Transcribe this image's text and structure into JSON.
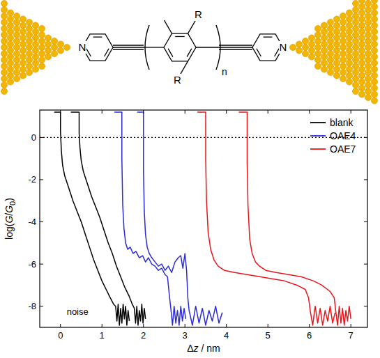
{
  "structure": {
    "atoms": [
      "N",
      "N"
    ],
    "substituents": [
      "R",
      "R"
    ],
    "repeat": "n"
  },
  "chart_data": {
    "type": "line",
    "x_label": "Δz / nm",
    "y_label": "log(G/G0)",
    "xlim": [
      -0.5,
      7.4
    ],
    "ylim": [
      -9,
      1.3
    ],
    "xticks": [
      0,
      1,
      2,
      3,
      4,
      5,
      6,
      7
    ],
    "yticks": [
      -8,
      -6,
      -4,
      -2,
      0
    ],
    "legend": "upper right",
    "annotations": [
      {
        "text": "noise",
        "x": 0.15,
        "y": -8.4
      }
    ],
    "series": [
      {
        "name": "blank",
        "color": "#000000",
        "traces": [
          {
            "x": [
              -0.15,
              0.0,
              0.0,
              0.02,
              0.05,
              0.1,
              0.2,
              0.3,
              0.4,
              0.5,
              0.6,
              0.7,
              0.8,
              0.9,
              1.0,
              1.1,
              1.2,
              1.28,
              1.33,
              1.36,
              1.39,
              1.42,
              1.45,
              1.48,
              1.51,
              1.54,
              1.57,
              1.6,
              1.63,
              1.66
            ],
            "values": [
              1.2,
              1.2,
              0.3,
              -0.6,
              -1.3,
              -1.8,
              -2.4,
              -3.0,
              -3.5,
              -4.0,
              -4.6,
              -5.2,
              -5.8,
              -6.3,
              -6.8,
              -7.2,
              -7.6,
              -7.9,
              -8.0,
              -8.7,
              -7.9,
              -8.9,
              -8.1,
              -8.8,
              -7.9,
              -8.6,
              -8.0,
              -8.9,
              -8.2,
              -8.7
            ]
          },
          {
            "x": [
              0.25,
              0.45,
              0.45,
              0.47,
              0.5,
              0.55,
              0.65,
              0.75,
              0.85,
              0.95,
              1.05,
              1.15,
              1.25,
              1.35,
              1.45,
              1.55,
              1.65,
              1.73,
              1.78,
              1.81,
              1.84,
              1.87,
              1.9,
              1.93,
              1.96,
              1.99,
              2.02,
              2.05
            ],
            "values": [
              1.2,
              1.2,
              0.2,
              -0.5,
              -1.1,
              -1.6,
              -2.2,
              -2.8,
              -3.3,
              -3.8,
              -4.4,
              -5.0,
              -5.5,
              -6.1,
              -6.6,
              -7.1,
              -7.5,
              -7.9,
              -8.1,
              -8.8,
              -8.0,
              -8.9,
              -8.2,
              -8.7,
              -7.9,
              -8.8,
              -8.1,
              -8.6
            ]
          }
        ]
      },
      {
        "name": "OAE4",
        "color": "#2b2bd9",
        "traces": [
          {
            "x": [
              1.3,
              1.48,
              1.48,
              1.5,
              1.53,
              1.57,
              1.62,
              1.68,
              1.75,
              1.82,
              1.9,
              1.98,
              2.05,
              2.12,
              2.2,
              2.28,
              2.36,
              2.44,
              2.52,
              2.58,
              2.62,
              2.66,
              2.7,
              2.74,
              2.78,
              2.82,
              2.86,
              2.9,
              2.94,
              2.98,
              3.02
            ],
            "values": [
              1.2,
              1.2,
              -1.0,
              -3.2,
              -4.3,
              -5.0,
              -5.3,
              -5.2,
              -5.5,
              -5.4,
              -5.7,
              -5.6,
              -5.9,
              -5.7,
              -6.0,
              -6.1,
              -6.3,
              -6.2,
              -6.5,
              -6.6,
              -7.4,
              -8.1,
              -8.9,
              -8.0,
              -8.8,
              -8.2,
              -8.9,
              -8.0,
              -8.7,
              -8.1,
              -8.6
            ]
          },
          {
            "x": [
              1.85,
              2.0,
              2.0,
              2.02,
              2.05,
              2.09,
              2.14,
              2.2,
              2.28,
              2.36,
              2.44,
              2.52,
              2.6,
              2.68,
              2.76,
              2.84,
              2.9,
              2.95,
              3.0,
              3.04,
              3.07,
              3.1,
              3.18,
              3.26,
              3.34,
              3.42,
              3.5,
              3.58,
              3.66,
              3.74,
              3.82,
              3.9
            ],
            "values": [
              1.2,
              1.2,
              -1.5,
              -3.5,
              -4.6,
              -5.2,
              -5.5,
              -5.7,
              -5.9,
              -6.1,
              -6.0,
              -6.3,
              -6.1,
              -6.4,
              -5.9,
              -5.7,
              -5.6,
              -6.2,
              -5.5,
              -6.3,
              -7.6,
              -8.2,
              -8.9,
              -8.0,
              -8.8,
              -8.1,
              -8.9,
              -8.2,
              -8.7,
              -8.0,
              -8.8,
              -8.3
            ]
          }
        ]
      },
      {
        "name": "OAE7",
        "color": "#e8161b",
        "traces": [
          {
            "x": [
              3.3,
              3.5,
              3.5,
              3.52,
              3.56,
              3.62,
              3.7,
              3.8,
              3.95,
              4.2,
              4.5,
              4.8,
              5.1,
              5.4,
              5.7,
              5.9,
              5.98,
              6.02,
              6.08,
              6.14,
              6.2,
              6.26,
              6.32,
              6.38,
              6.44,
              6.5,
              6.56,
              6.62
            ],
            "values": [
              1.2,
              1.2,
              -1.0,
              -3.0,
              -4.5,
              -5.3,
              -5.8,
              -6.1,
              -6.3,
              -6.4,
              -6.5,
              -6.6,
              -6.7,
              -6.8,
              -7.0,
              -7.2,
              -7.6,
              -8.2,
              -8.9,
              -8.0,
              -8.8,
              -8.1,
              -8.9,
              -8.2,
              -8.7,
              -8.0,
              -8.8,
              -8.3
            ]
          },
          {
            "x": [
              4.3,
              4.5,
              4.5,
              4.52,
              4.56,
              4.62,
              4.7,
              4.8,
              4.95,
              5.2,
              5.5,
              5.8,
              6.1,
              6.3,
              6.5,
              6.6,
              6.64,
              6.68,
              6.72,
              6.76,
              6.8,
              6.84,
              6.88,
              6.92,
              6.96,
              7.0
            ],
            "values": [
              1.2,
              1.2,
              -1.2,
              -3.2,
              -4.8,
              -5.5,
              -5.9,
              -6.1,
              -6.3,
              -6.4,
              -6.5,
              -6.6,
              -6.8,
              -7.0,
              -7.3,
              -7.6,
              -8.3,
              -8.9,
              -8.0,
              -8.8,
              -8.1,
              -8.9,
              -8.2,
              -8.7,
              -8.0,
              -8.6
            ]
          }
        ]
      }
    ]
  }
}
